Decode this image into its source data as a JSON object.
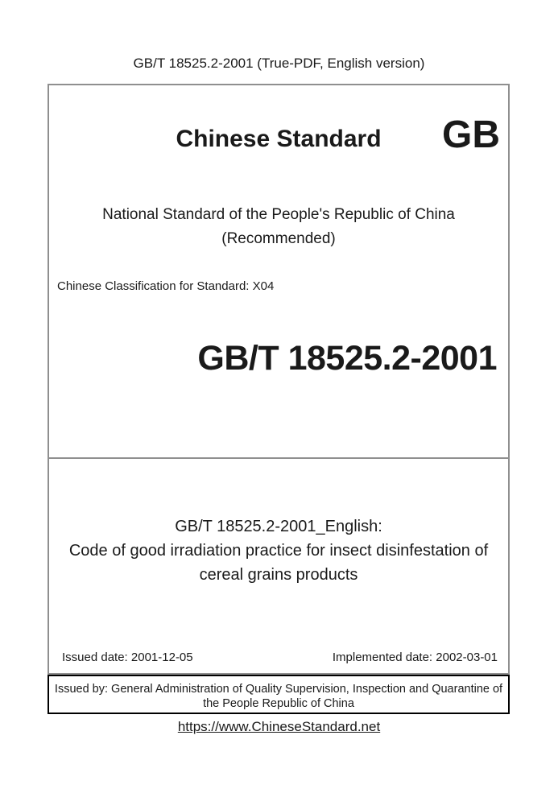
{
  "header": {
    "text": "GB/T 18525.2-2001 (True-PDF, English version)"
  },
  "cover": {
    "brand_title": "Chinese Standard",
    "gb_logo": "GB",
    "national_line": "National Standard of the People's Republic of China",
    "recommended_line": "(Recommended)",
    "classification": "Chinese Classification for Standard: X04",
    "standard_code": "GB/T 18525.2-2001"
  },
  "title_block": {
    "english_label": "GB/T 18525.2-2001_English:",
    "title_line1": "Code of good irradiation practice for insect disinfestation of",
    "title_line2": "cereal grains products",
    "issued_date": "Issued date: 2001-12-05",
    "implemented_date": "Implemented date: 2002-03-01"
  },
  "issuer": {
    "line1": "Issued by: General Administration of Quality Supervision, Inspection and Quarantine of",
    "line2": "the People Republic of China"
  },
  "footer": {
    "link": "https://www.ChineseStandard.net"
  },
  "colors": {
    "border_gray": "#8f8f8f",
    "border_black": "#000000",
    "text": "#1a1a1a"
  }
}
